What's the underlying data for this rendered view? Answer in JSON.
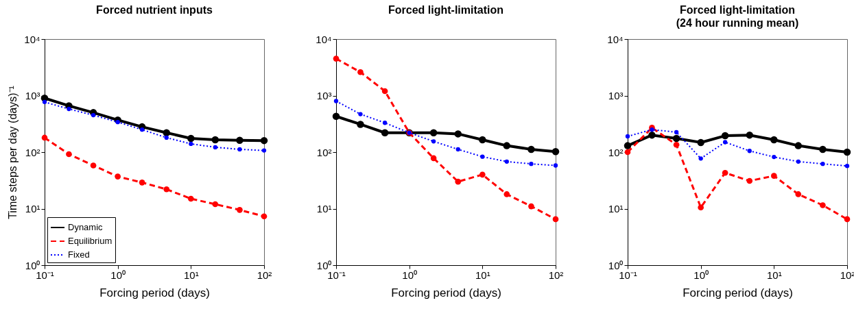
{
  "chart_data": [
    {
      "type": "line",
      "title": "Forced nutrient inputs",
      "xlabel": "Forcing period (days)",
      "ylabel": "Time steps per day (days)⁻¹",
      "log": "xy",
      "marker": "circle",
      "legend": "bottom left",
      "grid": false,
      "x": [
        0.1,
        0.215,
        0.464,
        1,
        2.15,
        4.64,
        10,
        21.5,
        46.4,
        100
      ],
      "xlim": [
        0.1,
        100
      ],
      "ylim": [
        1,
        10000
      ],
      "xticks": [
        {
          "value": 0.1,
          "label": "10⁻¹"
        },
        {
          "value": 1,
          "label": "10⁰"
        },
        {
          "value": 10,
          "label": "10¹"
        },
        {
          "value": 100,
          "label": "10²"
        }
      ],
      "yticks": [
        {
          "value": 1,
          "label": "10⁰"
        },
        {
          "value": 10,
          "label": "10¹"
        },
        {
          "value": 100,
          "label": "10²"
        },
        {
          "value": 1000,
          "label": "10³"
        },
        {
          "value": 10000,
          "label": "10⁴"
        }
      ],
      "series": [
        {
          "name": "Dynamic",
          "color": "#000000",
          "line_style": "solid",
          "values": [
            900,
            660,
            500,
            370,
            280,
            220,
            175,
            165,
            162,
            160
          ]
        },
        {
          "name": "Equilibrium",
          "color": "#ff0000",
          "line_style": "dashed",
          "values": [
            180,
            92,
            58,
            37,
            29,
            22,
            15,
            12,
            9.5,
            7.3
          ]
        },
        {
          "name": "Fixed",
          "color": "#0000ff",
          "line_style": "dotted",
          "values": [
            770,
            580,
            450,
            340,
            250,
            180,
            140,
            122,
            112,
            107
          ]
        }
      ]
    },
    {
      "type": "line",
      "title": "Forced light-limitation",
      "xlabel": "Forcing period (days)",
      "log": "xy",
      "marker": "circle",
      "grid": false,
      "x": [
        0.1,
        0.215,
        0.464,
        1,
        2.15,
        4.64,
        10,
        21.5,
        46.4,
        100
      ],
      "xlim": [
        0.1,
        100
      ],
      "ylim": [
        1,
        10000
      ],
      "xticks": [
        {
          "value": 0.1,
          "label": "10⁻¹"
        },
        {
          "value": 1,
          "label": "10⁰"
        },
        {
          "value": 10,
          "label": "10¹"
        },
        {
          "value": 100,
          "label": "10²"
        }
      ],
      "yticks": [
        {
          "value": 1,
          "label": "10⁰"
        },
        {
          "value": 10,
          "label": "10¹"
        },
        {
          "value": 100,
          "label": "10²"
        },
        {
          "value": 1000,
          "label": "10³"
        },
        {
          "value": 10000,
          "label": "10⁴"
        }
      ],
      "series": [
        {
          "color": "#000000",
          "line_style": "solid",
          "values": [
            430,
            310,
            220,
            220,
            220,
            210,
            165,
            130,
            112,
            102
          ]
        },
        {
          "color": "#ff0000",
          "line_style": "dashed",
          "values": [
            4500,
            2600,
            1200,
            220,
            78,
            30,
            40,
            18,
            11,
            6.5
          ]
        },
        {
          "color": "#0000ff",
          "line_style": "dotted",
          "values": [
            800,
            470,
            330,
            220,
            155,
            112,
            83,
            68,
            62,
            58
          ]
        }
      ]
    },
    {
      "type": "line",
      "title": "Forced light-limitation",
      "subtitle": "(24 hour running mean)",
      "xlabel": "Forcing period (days)",
      "log": "xy",
      "marker": "circle",
      "grid": false,
      "x": [
        0.1,
        0.215,
        0.464,
        1,
        2.15,
        4.64,
        10,
        21.5,
        46.4,
        100
      ],
      "xlim": [
        0.1,
        100
      ],
      "ylim": [
        1,
        10000
      ],
      "xticks": [
        {
          "value": 0.1,
          "label": "10⁻¹"
        },
        {
          "value": 1,
          "label": "10⁰"
        },
        {
          "value": 10,
          "label": "10¹"
        },
        {
          "value": 100,
          "label": "10²"
        }
      ],
      "yticks": [
        {
          "value": 1,
          "label": "10⁰"
        },
        {
          "value": 10,
          "label": "10¹"
        },
        {
          "value": 100,
          "label": "10²"
        },
        {
          "value": 1000,
          "label": "10³"
        },
        {
          "value": 10000,
          "label": "10⁴"
        }
      ],
      "series": [
        {
          "color": "#000000",
          "line_style": "solid",
          "values": [
            130,
            200,
            175,
            148,
            195,
            200,
            165,
            130,
            112,
            100
          ]
        },
        {
          "color": "#ff0000",
          "line_style": "dashed",
          "values": [
            100,
            270,
            135,
            10.5,
            43,
            31,
            38,
            18,
            11.5,
            6.5
          ]
        },
        {
          "color": "#0000ff",
          "line_style": "dotted",
          "values": [
            190,
            250,
            225,
            77,
            150,
            105,
            82,
            68,
            62,
            57
          ]
        }
      ]
    }
  ]
}
